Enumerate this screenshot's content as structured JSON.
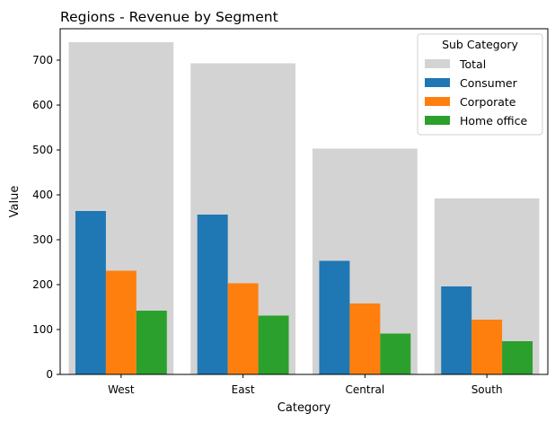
{
  "chart_data": {
    "type": "bar",
    "title": "Regions - Revenue by Segment",
    "xlabel": "Category",
    "ylabel": "Value",
    "categories": [
      "West",
      "East",
      "Central",
      "South"
    ],
    "ylim": [
      0,
      770
    ],
    "yticks": [
      0,
      100,
      200,
      300,
      400,
      500,
      600,
      700
    ],
    "grid": false,
    "legend": {
      "title": "Sub Category",
      "placement": "top-right"
    },
    "background_series": {
      "name": "Total",
      "values": [
        740,
        693,
        503,
        392
      ],
      "color": "#d3d3d3"
    },
    "series": [
      {
        "name": "Consumer",
        "values": [
          364,
          356,
          253,
          196
        ],
        "color": "#1f77b4"
      },
      {
        "name": "Corporate",
        "values": [
          231,
          203,
          158,
          122
        ],
        "color": "#ff7f0e"
      },
      {
        "name": "Home office",
        "values": [
          142,
          131,
          91,
          74
        ],
        "color": "#2ca02c"
      }
    ]
  }
}
